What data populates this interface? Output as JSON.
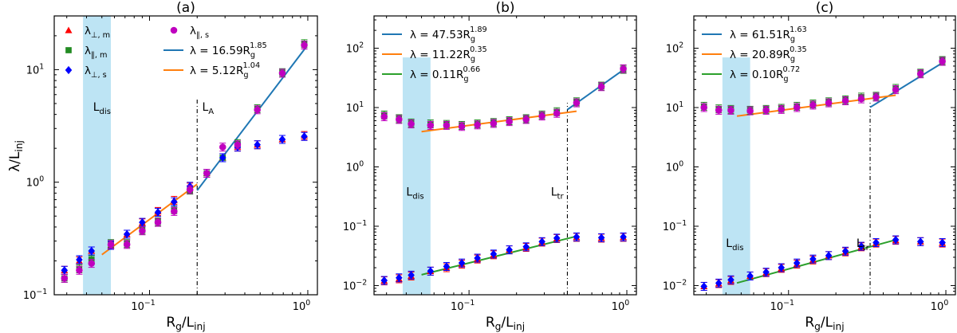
{
  "figure": {
    "ylabel_base": "λ/L",
    "ylabel_sub": "inj",
    "xlabel_base": "R",
    "xlabel_sub1": "g",
    "xlabel_mid": "/L",
    "xlabel_sub2": "inj"
  },
  "chart_data": [
    {
      "type": "scatter",
      "title": "(a)",
      "xscale": "log",
      "yscale": "log",
      "xlim": [
        0.025,
        1.15
      ],
      "ylim": [
        0.1,
        30
      ],
      "xticks": [
        {
          "v": 0.1,
          "b": "10",
          "e": "−1"
        },
        {
          "v": 1,
          "b": "10",
          "e": "0"
        }
      ],
      "yticks": [
        {
          "v": 0.1,
          "b": "10",
          "e": "−1"
        },
        {
          "v": 1,
          "b": "10",
          "e": "0"
        },
        {
          "v": 10,
          "b": "10",
          "e": "1"
        }
      ],
      "shade": [
        0.038,
        0.057
      ],
      "vline": 0.2,
      "shade_label": {
        "x": 0.044,
        "y": 4.3,
        "base": "L",
        "sub": "dis"
      },
      "vline_label": {
        "x": 0.215,
        "y": 4.3,
        "base": "L",
        "sub": "A"
      },
      "legend_cols": 2,
      "legend_location": "top-left",
      "legend": [
        {
          "kind": "triangle",
          "color": "#ff0000",
          "base": "λ",
          "sub": "⊥, m"
        },
        {
          "kind": "square",
          "color": "#228b22",
          "base": "λ",
          "sub": "∥, m"
        },
        {
          "kind": "diamond",
          "color": "#0000ff",
          "base": "λ",
          "sub": "⊥, s"
        },
        {
          "kind": "circle",
          "color": "#bf00bf",
          "base": "λ",
          "sub": "∥, s"
        },
        {
          "kind": "line",
          "color": "#1f77b4",
          "text": "λ = 16.59R",
          "sub": "g",
          "sup": "1.85"
        },
        {
          "kind": "line",
          "color": "#ff7f0e",
          "text": "λ = 5.12R",
          "sub": "g",
          "sup": "1.04"
        }
      ],
      "fits": [
        {
          "color": "#1f77b4",
          "coef": 16.59,
          "exp": 1.85,
          "x": [
            0.2,
            0.98
          ]
        },
        {
          "color": "#ff7f0e",
          "coef": 5.12,
          "exp": 1.04,
          "x": [
            0.05,
            0.2
          ]
        }
      ],
      "series": [
        {
          "marker": "triangle",
          "color": "#ff0000",
          "x": [
            0.029,
            0.036,
            0.043,
            0.057,
            0.072,
            0.09,
            0.113,
            0.143,
            0.18,
            0.23,
            0.29,
            0.36,
            0.48,
            0.69,
            0.95
          ],
          "y": [
            0.165,
            0.2,
            0.245,
            0.275,
            0.345,
            0.435,
            0.55,
            0.69,
            0.905,
            1.2,
            1.65,
            2.05,
            2.15,
            2.4,
            2.6
          ]
        },
        {
          "marker": "square",
          "color": "#228b22",
          "x": [
            0.029,
            0.036,
            0.043,
            0.057,
            0.072,
            0.09,
            0.113,
            0.143,
            0.18,
            0.23,
            0.29,
            0.36,
            0.48,
            0.69,
            0.95
          ],
          "y": [
            0.14,
            0.17,
            0.205,
            0.285,
            0.285,
            0.375,
            0.445,
            0.57,
            0.85,
            1.2,
            1.65,
            2.2,
            4.5,
            9.4,
            17.0
          ]
        },
        {
          "marker": "diamond",
          "color": "#0000ff",
          "x": [
            0.029,
            0.036,
            0.043,
            0.057,
            0.072,
            0.09,
            0.113,
            0.143,
            0.18,
            0.23,
            0.29,
            0.36,
            0.48,
            0.69,
            0.95
          ],
          "y": [
            0.165,
            0.205,
            0.245,
            0.275,
            0.345,
            0.44,
            0.54,
            0.67,
            0.92,
            1.2,
            1.65,
            2.05,
            2.15,
            2.4,
            2.55
          ]
        },
        {
          "marker": "circle",
          "color": "#bf00bf",
          "x": [
            0.029,
            0.036,
            0.043,
            0.057,
            0.072,
            0.09,
            0.113,
            0.143,
            0.18,
            0.23,
            0.29,
            0.36,
            0.48,
            0.69,
            0.95
          ],
          "y": [
            0.14,
            0.165,
            0.19,
            0.28,
            0.28,
            0.37,
            0.44,
            0.55,
            0.86,
            1.2,
            2.05,
            2.15,
            4.4,
            9.3,
            16.5
          ]
        }
      ]
    },
    {
      "type": "scatter",
      "title": "(b)",
      "xscale": "log",
      "yscale": "log",
      "xlim": [
        0.025,
        1.15
      ],
      "ylim": [
        0.007,
        350
      ],
      "xticks": [
        {
          "v": 0.1,
          "b": "10",
          "e": "−1"
        },
        {
          "v": 1,
          "b": "10",
          "e": "0"
        }
      ],
      "yticks": [
        {
          "v": 0.01,
          "b": "10",
          "e": "−2"
        },
        {
          "v": 0.1,
          "b": "10",
          "e": "−1"
        },
        {
          "v": 1,
          "b": "10",
          "e": "0"
        },
        {
          "v": 10,
          "b": "10",
          "e": "1"
        },
        {
          "v": 100,
          "b": "10",
          "e": "2"
        }
      ],
      "shade": [
        0.038,
        0.057
      ],
      "vline": 0.42,
      "shade_label": {
        "x": 0.04,
        "y": 0.33,
        "base": "L",
        "sub": "dis"
      },
      "vline_label": {
        "x": 0.33,
        "y": 0.33,
        "base": "L",
        "sub": "tr"
      },
      "legend_cols": 1,
      "legend_location": "top-left",
      "legend": [
        {
          "kind": "line",
          "color": "#1f77b4",
          "text": "λ = 47.53R",
          "sub": "g",
          "sup": "1.89"
        },
        {
          "kind": "line",
          "color": "#ff7f0e",
          "text": "λ = 11.22R",
          "sub": "g",
          "sup": "0.35"
        },
        {
          "kind": "line",
          "color": "#2ca02c",
          "text": "λ = 0.11R",
          "sub": "g",
          "sup": "0.66"
        }
      ],
      "fits": [
        {
          "color": "#1f77b4",
          "coef": 47.53,
          "exp": 1.89,
          "x": [
            0.42,
            0.97
          ]
        },
        {
          "color": "#ff7f0e",
          "coef": 11.22,
          "exp": 0.35,
          "x": [
            0.05,
            0.48
          ]
        },
        {
          "color": "#2ca02c",
          "coef": 0.11,
          "exp": 0.66,
          "x": [
            0.05,
            0.48
          ]
        }
      ],
      "series": [
        {
          "marker": "triangle",
          "color": "#ff0000",
          "x": [
            0.029,
            0.036,
            0.043,
            0.057,
            0.072,
            0.09,
            0.113,
            0.143,
            0.18,
            0.23,
            0.29,
            0.36,
            0.48,
            0.69,
            0.95
          ],
          "y": [
            0.012,
            0.013,
            0.0145,
            0.0175,
            0.02,
            0.023,
            0.028,
            0.033,
            0.04,
            0.044,
            0.054,
            0.062,
            0.065,
            0.063,
            0.065
          ]
        },
        {
          "marker": "square",
          "color": "#228b22",
          "x": [
            0.029,
            0.036,
            0.043,
            0.057,
            0.072,
            0.09,
            0.113,
            0.143,
            0.18,
            0.23,
            0.29,
            0.36,
            0.48,
            0.69,
            0.95
          ],
          "y": [
            7.5,
            6.5,
            5.5,
            5.3,
            5.2,
            5.0,
            5.3,
            5.6,
            6.0,
            6.5,
            7.5,
            8.5,
            12.5,
            23.0,
            44.0
          ]
        },
        {
          "marker": "diamond",
          "color": "#0000ff",
          "x": [
            0.029,
            0.036,
            0.043,
            0.057,
            0.072,
            0.09,
            0.113,
            0.143,
            0.18,
            0.23,
            0.29,
            0.36,
            0.48,
            0.69,
            0.95
          ],
          "y": [
            0.0122,
            0.0135,
            0.015,
            0.0175,
            0.021,
            0.024,
            0.029,
            0.034,
            0.04,
            0.045,
            0.055,
            0.063,
            0.066,
            0.064,
            0.066
          ]
        },
        {
          "marker": "circle",
          "color": "#bf00bf",
          "x": [
            0.029,
            0.036,
            0.043,
            0.057,
            0.072,
            0.09,
            0.113,
            0.143,
            0.18,
            0.23,
            0.29,
            0.36,
            0.48,
            0.69,
            0.95
          ],
          "y": [
            7.0,
            6.3,
            5.3,
            5.0,
            5.0,
            4.8,
            5.1,
            5.4,
            5.8,
            6.3,
            7.2,
            8.0,
            12.0,
            22.5,
            45.0
          ]
        }
      ]
    },
    {
      "type": "scatter",
      "title": "(c)",
      "xscale": "log",
      "yscale": "log",
      "xlim": [
        0.025,
        1.15
      ],
      "ylim": [
        0.007,
        350
      ],
      "xticks": [
        {
          "v": 0.1,
          "b": "10",
          "e": "−1"
        },
        {
          "v": 1,
          "b": "10",
          "e": "0"
        }
      ],
      "yticks": [
        {
          "v": 0.01,
          "b": "10",
          "e": "−2"
        },
        {
          "v": 0.1,
          "b": "10",
          "e": "−1"
        },
        {
          "v": 1,
          "b": "10",
          "e": "0"
        },
        {
          "v": 10,
          "b": "10",
          "e": "1"
        },
        {
          "v": 100,
          "b": "10",
          "e": "2"
        }
      ],
      "shade": [
        0.038,
        0.057
      ],
      "vline": 0.33,
      "shade_label": {
        "x": 0.04,
        "y": 0.045,
        "base": "L",
        "sub": "dis"
      },
      "vline_label": {
        "x": 0.27,
        "y": 0.045,
        "base": "L",
        "sub": "tr"
      },
      "legend_cols": 1,
      "legend_location": "top-left",
      "legend": [
        {
          "kind": "line",
          "color": "#1f77b4",
          "text": "λ = 61.51R",
          "sub": "g",
          "sup": "1.63"
        },
        {
          "kind": "line",
          "color": "#ff7f0e",
          "text": "λ = 20.89R",
          "sub": "g",
          "sup": "0.35"
        },
        {
          "kind": "line",
          "color": "#2ca02c",
          "text": "λ = 0.10R",
          "sub": "g",
          "sup": "0.72"
        }
      ],
      "fits": [
        {
          "color": "#1f77b4",
          "coef": 61.51,
          "exp": 1.63,
          "x": [
            0.33,
            0.97
          ]
        },
        {
          "color": "#ff7f0e",
          "coef": 20.89,
          "exp": 0.35,
          "x": [
            0.047,
            0.48
          ]
        },
        {
          "color": "#2ca02c",
          "coef": 0.1,
          "exp": 0.72,
          "x": [
            0.047,
            0.48
          ]
        }
      ],
      "series": [
        {
          "marker": "triangle",
          "color": "#ff0000",
          "x": [
            0.029,
            0.036,
            0.043,
            0.057,
            0.072,
            0.09,
            0.113,
            0.143,
            0.18,
            0.23,
            0.29,
            0.36,
            0.48,
            0.69,
            0.95
          ],
          "y": [
            0.0097,
            0.0108,
            0.0122,
            0.0145,
            0.0165,
            0.0195,
            0.023,
            0.027,
            0.032,
            0.037,
            0.045,
            0.052,
            0.058,
            0.055,
            0.052
          ]
        },
        {
          "marker": "square",
          "color": "#228b22",
          "x": [
            0.029,
            0.036,
            0.043,
            0.057,
            0.072,
            0.09,
            0.113,
            0.143,
            0.18,
            0.23,
            0.29,
            0.36,
            0.48,
            0.69,
            0.95
          ],
          "y": [
            10.5,
            9.5,
            9.3,
            9.0,
            9.3,
            9.7,
            10.5,
            11.5,
            12.5,
            13.5,
            15.0,
            15.5,
            21.0,
            38.0,
            62.0
          ]
        },
        {
          "marker": "diamond",
          "color": "#0000ff",
          "x": [
            0.029,
            0.036,
            0.043,
            0.057,
            0.072,
            0.09,
            0.113,
            0.143,
            0.18,
            0.23,
            0.29,
            0.36,
            0.48,
            0.69,
            0.95
          ],
          "y": [
            0.0097,
            0.011,
            0.0125,
            0.0145,
            0.0168,
            0.02,
            0.024,
            0.028,
            0.032,
            0.038,
            0.046,
            0.053,
            0.059,
            0.055,
            0.053
          ]
        },
        {
          "marker": "circle",
          "color": "#bf00bf",
          "x": [
            0.029,
            0.036,
            0.043,
            0.057,
            0.072,
            0.09,
            0.113,
            0.143,
            0.18,
            0.23,
            0.29,
            0.36,
            0.48,
            0.69,
            0.95
          ],
          "y": [
            10.0,
            9.0,
            9.0,
            8.8,
            9.0,
            9.3,
            10.0,
            11.0,
            12.0,
            13.0,
            14.0,
            15.0,
            20.0,
            37.0,
            60.0
          ]
        }
      ]
    }
  ]
}
